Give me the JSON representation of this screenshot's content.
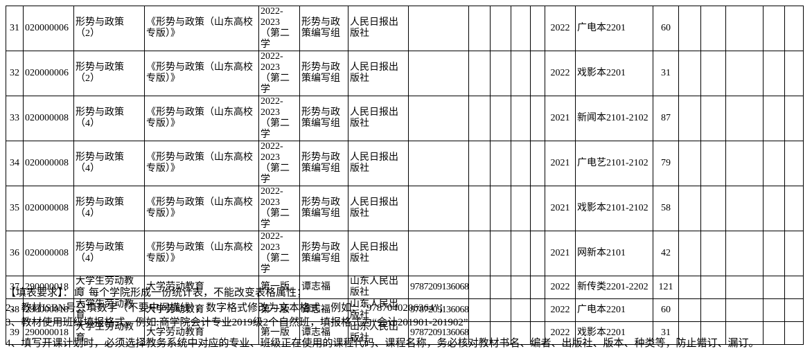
{
  "table": {
    "rows": [
      {
        "no": "31",
        "code": "020000006",
        "course": "形势与政策（2）",
        "book": "《形势与政策（山东高校专版）》",
        "edition": "2022-2023（第二学",
        "author": "形势与政策编写组",
        "publisher": "人民日报出版社",
        "isbn": "",
        "year": "2022",
        "class_name": "广电本2201",
        "qty": "60"
      },
      {
        "no": "32",
        "code": "020000006",
        "course": "形势与政策（2）",
        "book": "《形势与政策（山东高校专版）》",
        "edition": "2022-2023（第二学",
        "author": "形势与政策编写组",
        "publisher": "人民日报出版社",
        "isbn": "",
        "year": "2022",
        "class_name": "戏影本2201",
        "qty": "31"
      },
      {
        "no": "33",
        "code": "020000008",
        "course": "形势与政策（4）",
        "book": "《形势与政策（山东高校专版）》",
        "edition": "2022-2023（第二学",
        "author": "形势与政策编写组",
        "publisher": "人民日报出版社",
        "isbn": "",
        "year": "2021",
        "class_name": "新闻本2101-2102",
        "qty": "87"
      },
      {
        "no": "34",
        "code": "020000008",
        "course": "形势与政策（4）",
        "book": "《形势与政策（山东高校专版）》",
        "edition": "2022-2023（第二学",
        "author": "形势与政策编写组",
        "publisher": "人民日报出版社",
        "isbn": "",
        "year": "2021",
        "class_name": "广电艺2101-2102",
        "qty": "79"
      },
      {
        "no": "35",
        "code": "020000008",
        "course": "形势与政策（4）",
        "book": "《形势与政策（山东高校专版）》",
        "edition": "2022-2023（第二学",
        "author": "形势与政策编写组",
        "publisher": "人民日报出版社",
        "isbn": "",
        "year": "2021",
        "class_name": "戏影本2101-2102",
        "qty": "58"
      },
      {
        "no": "36",
        "code": "020000008",
        "course": "形势与政策（4）",
        "book": "《形势与政策（山东高校专版）》",
        "edition": "2022-2023（第二学",
        "author": "形势与政策编写组",
        "publisher": "人民日报出版社",
        "isbn": "",
        "year": "2021",
        "class_name": "网新本2101",
        "qty": "42"
      },
      {
        "no": "37",
        "code": "290000018",
        "course": "大学生劳动教育",
        "book": "大学劳动教育",
        "edition": "第一版",
        "author": "谭志福",
        "publisher": "山东人民出版社",
        "isbn": "9787209136068",
        "year": "2022",
        "class_name": "新传类2201-2202",
        "qty": "121"
      },
      {
        "no": "38",
        "code": "290000018",
        "course": "大学生劳动教育",
        "book": "大学劳动教育",
        "edition": "第一版",
        "author": "谭志福",
        "publisher": "山东人民出版社",
        "isbn": "9787209136068",
        "year": "2022",
        "class_name": "广电本2201",
        "qty": "60"
      },
      {
        "no": "39",
        "code": "290000018",
        "course": "大学生劳动教育",
        "book": "大学劳动教育",
        "edition": "第一版",
        "author": "谭志福",
        "publisher": "山东人民出版社",
        "isbn": "9787209136068",
        "year": "2022",
        "class_name": "戏影本2201",
        "qty": "31"
      }
    ]
  },
  "notes": {
    "line1": "【填表要求】：1、每个学院形成一份统计表，不能改变表格属性；",
    "line2": "2、教材ISBN号只填数字（不要中间横线），数字格式修改为文本格式，例如：“9787040206364”；",
    "line3": "3、教材使用班级填报格式，例如:商学院会计专业2019级2个自然班，填报格式为“会计201901-201902”",
    "line4": "4、填写开课计划时，必须选择教务系统中对应的专业、班级正在使用的课程代码、课程名称，务必核对教材书名、编者、出版社、版本、种类等，防止错订、漏订。"
  },
  "colors": {
    "border": "#000000",
    "text": "#000000",
    "background": "#ffffff"
  }
}
